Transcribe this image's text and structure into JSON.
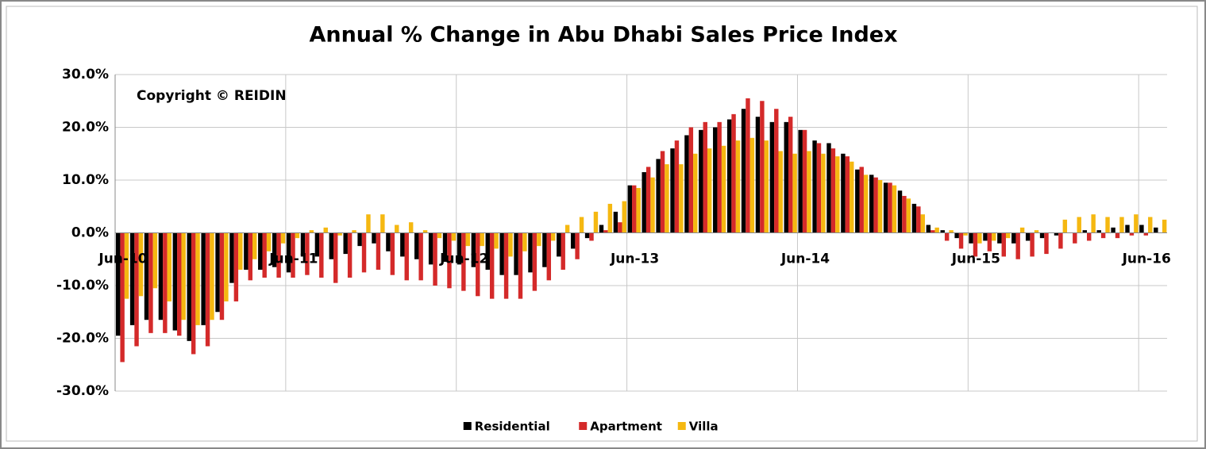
{
  "chart_data": {
    "type": "bar",
    "title": "Annual % Change in Abu Dhabi Sales Price Index",
    "annotation": "Copyright © REIDIN",
    "categories": [
      "Jun-10",
      null,
      null,
      null,
      null,
      null,
      null,
      null,
      null,
      null,
      null,
      null,
      "Jun-11",
      null,
      null,
      null,
      null,
      null,
      null,
      null,
      null,
      null,
      null,
      null,
      "Jun-12",
      null,
      null,
      null,
      null,
      null,
      null,
      null,
      null,
      null,
      null,
      null,
      "Jun-13",
      null,
      null,
      null,
      null,
      null,
      null,
      null,
      null,
      null,
      null,
      null,
      "Jun-14",
      null,
      null,
      null,
      null,
      null,
      null,
      null,
      null,
      null,
      null,
      null,
      "Jun-15",
      null,
      null,
      null,
      null,
      null,
      null,
      null,
      null,
      null,
      null,
      null,
      "Jun-16",
      null
    ],
    "series": [
      {
        "name": "Residential",
        "color": "#000000",
        "values": [
          -19.5,
          -17.5,
          -16.5,
          -16.5,
          -18.5,
          -20.5,
          -17.5,
          -15,
          -9.5,
          -7,
          -7,
          -6.5,
          -7.5,
          -4.5,
          -4.5,
          -5,
          -4,
          -2.5,
          -2,
          -3.5,
          -4.5,
          -5,
          -6,
          -5.5,
          -6,
          -6.5,
          -7,
          -8,
          -8,
          -7.5,
          -6.5,
          -4.5,
          -3,
          -1,
          1.5,
          4,
          9,
          11.5,
          14,
          16,
          18.5,
          19.5,
          20,
          21.5,
          23.5,
          22,
          21,
          21,
          19.5,
          17.5,
          17,
          15,
          12,
          11,
          9.5,
          8,
          5.5,
          1.5,
          0.5,
          -1,
          -2,
          -1.5,
          -2,
          -2,
          -1.5,
          -1,
          -0.5,
          0,
          0.5,
          0.5,
          1,
          1.5,
          1.5,
          1
        ]
      },
      {
        "name": "Apartment",
        "color": "#d42a2a",
        "values": [
          -24.5,
          -21.5,
          -19,
          -19,
          -19.5,
          -23,
          -21.5,
          -16.5,
          -13,
          -9,
          -8.5,
          -8.5,
          -8.5,
          -8,
          -8.5,
          -9.5,
          -8.5,
          -7.5,
          -7,
          -8,
          -9,
          -9,
          -10,
          -10.5,
          -11,
          -12,
          -12.5,
          -12.5,
          -12.5,
          -11,
          -9,
          -7,
          -5,
          -1.5,
          0.5,
          2,
          9,
          12.5,
          15.5,
          17.5,
          20,
          21,
          21,
          22.5,
          25.5,
          25,
          23.5,
          22,
          19.5,
          17,
          16,
          14.5,
          12.5,
          10.5,
          9.5,
          7,
          5,
          0.5,
          -1.5,
          -3,
          -4.5,
          -3.5,
          -4.5,
          -5,
          -4.5,
          -4,
          -3,
          -2,
          -1.5,
          -1,
          -1,
          -0.5,
          -0.5,
          0
        ]
      },
      {
        "name": "Villa",
        "color": "#f5b811",
        "values": [
          -12.5,
          -12,
          -10.5,
          -13,
          -16.5,
          -17.5,
          -16.5,
          -13,
          -7,
          -5,
          -3.5,
          -2,
          -1,
          0.5,
          1,
          -0.5,
          0.5,
          3.5,
          3.5,
          1.5,
          2,
          0.5,
          -1,
          -1.5,
          -2.5,
          -2.5,
          -3,
          -4.5,
          -3.5,
          -2.5,
          -1.5,
          1.5,
          3,
          4,
          5.5,
          6,
          8.5,
          10.5,
          13,
          13,
          15,
          16,
          16.5,
          17.5,
          18,
          17.5,
          15.5,
          15,
          15.5,
          15,
          14.5,
          13.5,
          11,
          10,
          9,
          6.5,
          3.5,
          1,
          0.5,
          -0.5,
          -2,
          -1.5,
          -1,
          1,
          0.5,
          0,
          2.5,
          3,
          3.5,
          3,
          3,
          3.5,
          3,
          2.5
        ]
      }
    ],
    "ylim": [
      -30,
      30
    ],
    "yticks": [
      {
        "value": -30,
        "label": "-30.0%"
      },
      {
        "value": -20,
        "label": "-20.0%"
      },
      {
        "value": -10,
        "label": "-10.0%"
      },
      {
        "value": 0,
        "label": "0.0%"
      },
      {
        "value": 10,
        "label": "10.0%"
      },
      {
        "value": 20,
        "label": "20.0%"
      },
      {
        "value": 30,
        "label": "30.0%"
      }
    ],
    "grid": true,
    "legend": "bottom"
  }
}
